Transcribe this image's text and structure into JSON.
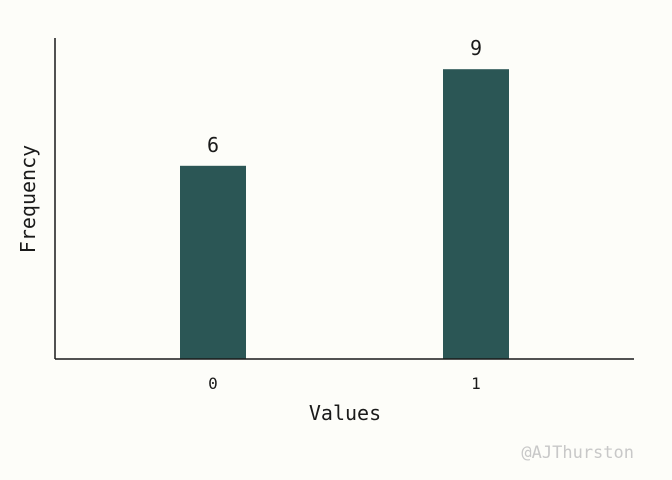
{
  "chart_data": {
    "type": "bar",
    "categories": [
      "0",
      "1"
    ],
    "values": [
      6,
      9
    ],
    "title": "",
    "xlabel": "Values",
    "ylabel": "Frequency",
    "ylim": [
      0,
      10
    ],
    "grid": false,
    "bar_color": "#2b5655",
    "data_labels": true
  },
  "watermark": "@AJThurston",
  "colors": {
    "background": "#fdfdf9",
    "axis": "#1a1a1a",
    "text": "#1a1a1a",
    "watermark": "#c8c8c8"
  }
}
